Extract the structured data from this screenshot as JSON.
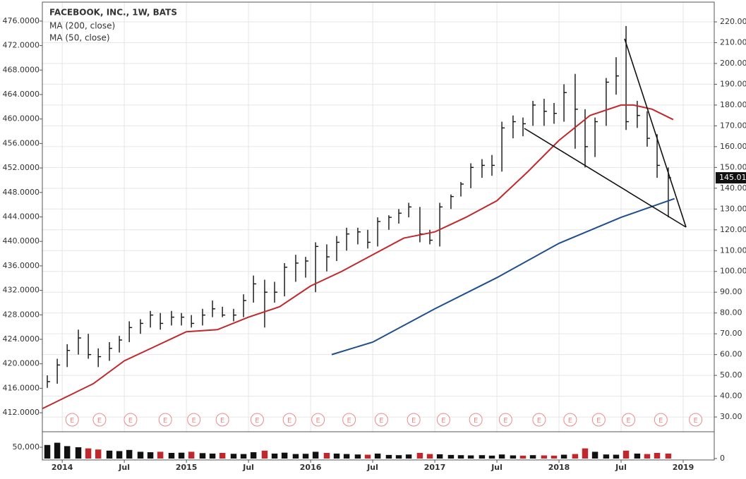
{
  "chart_data": {
    "type": "ohlc",
    "title": "FACEBOOK, INC., 1W, BATS",
    "legend": [
      "MA (200, close)",
      "MA (50, close)"
    ],
    "xlim": [
      2013.84,
      2019.25
    ],
    "xticks": [
      {
        "value": 2014,
        "label": "2014"
      },
      {
        "value": 2014.5,
        "label": "Jul"
      },
      {
        "value": 2015,
        "label": "2015"
      },
      {
        "value": 2015.5,
        "label": "Jul"
      },
      {
        "value": 2016,
        "label": "2016"
      },
      {
        "value": 2016.5,
        "label": "Jul"
      },
      {
        "value": 2017,
        "label": "2017"
      },
      {
        "value": 2017.5,
        "label": "Jul"
      },
      {
        "value": 2018,
        "label": "2018"
      },
      {
        "value": 2018.5,
        "label": "Jul"
      },
      {
        "value": 2019,
        "label": "2019"
      }
    ],
    "ylim": [
      22.9,
      229.5
    ],
    "yticks": [
      {
        "value": 30,
        "label": "30.00"
      },
      {
        "value": 40,
        "label": "40.00"
      },
      {
        "value": 50,
        "label": "50.00"
      },
      {
        "value": 60,
        "label": "60.00"
      },
      {
        "value": 70,
        "label": "70.00"
      },
      {
        "value": 80,
        "label": "80.00"
      },
      {
        "value": 90,
        "label": "90.00"
      },
      {
        "value": 100,
        "label": "100.00"
      },
      {
        "value": 110,
        "label": "110.00"
      },
      {
        "value": 120,
        "label": "120.00"
      },
      {
        "value": 130,
        "label": "130.00"
      },
      {
        "value": 140,
        "label": "140.00"
      },
      {
        "value": 150,
        "label": "150.00"
      },
      {
        "value": 160,
        "label": "160.00"
      },
      {
        "value": 170,
        "label": "170.00"
      },
      {
        "value": 180,
        "label": "180.00"
      },
      {
        "value": 190,
        "label": "190.00"
      },
      {
        "value": 200,
        "label": "200.00"
      },
      {
        "value": 210,
        "label": "210.00"
      },
      {
        "value": 220,
        "label": "220.00"
      }
    ],
    "y2lim": [
      408.9,
      479.1
    ],
    "y2ticks": [
      {
        "value": 412,
        "label": "412.0000"
      },
      {
        "value": 416,
        "label": "416.0000"
      },
      {
        "value": 420,
        "label": "420.0000"
      },
      {
        "value": 424,
        "label": "424.0000"
      },
      {
        "value": 428,
        "label": "428.0000"
      },
      {
        "value": 432,
        "label": "432.0000"
      },
      {
        "value": 436,
        "label": "436.0000"
      },
      {
        "value": 440,
        "label": "440.0000"
      },
      {
        "value": 444,
        "label": "444.0000"
      },
      {
        "value": 448,
        "label": "448.0000"
      },
      {
        "value": 452,
        "label": "452.0000"
      },
      {
        "value": 456,
        "label": "456.0000"
      },
      {
        "value": 460,
        "label": "460.0000"
      },
      {
        "value": 464,
        "label": "464.0000"
      },
      {
        "value": 468,
        "label": "468.0000"
      },
      {
        "value": 472,
        "label": "472.0000"
      },
      {
        "value": 476,
        "label": "476.0000"
      }
    ],
    "grid": true,
    "price": {
      "color": "#111111",
      "x": [
        2013.88,
        2013.96,
        2014.04,
        2014.13,
        2014.21,
        2014.29,
        2014.38,
        2014.46,
        2014.54,
        2014.63,
        2014.71,
        2014.79,
        2014.88,
        2014.96,
        2015.04,
        2015.13,
        2015.21,
        2015.29,
        2015.38,
        2015.46,
        2015.54,
        2015.63,
        2015.71,
        2015.79,
        2015.88,
        2015.96,
        2016.04,
        2016.13,
        2016.21,
        2016.29,
        2016.38,
        2016.46,
        2016.54,
        2016.63,
        2016.71,
        2016.79,
        2016.88,
        2016.96,
        2017.04,
        2017.13,
        2017.21,
        2017.29,
        2017.38,
        2017.46,
        2017.54,
        2017.63,
        2017.71,
        2017.79,
        2017.88,
        2017.96,
        2018.04,
        2018.13,
        2018.21,
        2018.29,
        2018.38,
        2018.46,
        2018.54,
        2018.63,
        2018.71,
        2018.79,
        2018.88
      ],
      "high": [
        50,
        58,
        65,
        72,
        70,
        63,
        66,
        69,
        76,
        77,
        81,
        80,
        81,
        80,
        79,
        82,
        86,
        83,
        82,
        89,
        98,
        96,
        95,
        104,
        108,
        107,
        114,
        113,
        117,
        121,
        121,
        120,
        126,
        127,
        130,
        133,
        131,
        120,
        133,
        137,
        143,
        152,
        154,
        156,
        172,
        175,
        174,
        182,
        183,
        181,
        190,
        195,
        178,
        174,
        193,
        203,
        218,
        182,
        177,
        166,
        150
      ],
      "low": [
        44,
        46,
        54,
        60,
        58,
        54,
        57,
        61,
        66,
        70,
        73,
        72,
        74,
        74,
        73,
        74,
        78,
        78,
        76,
        78,
        85,
        73,
        85,
        88,
        95,
        97,
        90,
        100,
        105,
        110,
        113,
        111,
        112,
        120,
        123,
        126,
        114,
        113,
        112,
        130,
        136,
        140,
        145,
        146,
        148,
        164,
        165,
        170,
        170,
        171,
        172,
        159,
        150,
        155,
        170,
        185,
        168,
        169,
        160,
        145,
        126
      ],
      "close": [
        47,
        55,
        62,
        68,
        60,
        59,
        63,
        67,
        73,
        75,
        79,
        75,
        78,
        78,
        75,
        79,
        82,
        79,
        79,
        86,
        94,
        90,
        90,
        102,
        104,
        105,
        112,
        107,
        114,
        118,
        119,
        114,
        124,
        126,
        128,
        131,
        118,
        115,
        131,
        136,
        142,
        150,
        151,
        151,
        169,
        172,
        171,
        180,
        177,
        176,
        186,
        178,
        160,
        172,
        191,
        194,
        172,
        175,
        164,
        151,
        145.01
      ]
    },
    "series": [
      {
        "name": "MA (200, close)",
        "color": "#1f4e8c",
        "x": [
          2016.17,
          2016.5,
          2017,
          2017.5,
          2018,
          2018.5,
          2018.93
        ],
        "values": [
          60,
          66,
          82,
          97,
          113.5,
          126,
          135
        ]
      },
      {
        "name": "MA (50, close)",
        "color": "#c0282d",
        "x": [
          2013.84,
          2014.25,
          2014.5,
          2014.75,
          2015,
          2015.25,
          2015.5,
          2015.75,
          2016,
          2016.25,
          2016.5,
          2016.75,
          2017,
          2017.25,
          2017.5,
          2017.75,
          2018,
          2018.25,
          2018.5,
          2018.6,
          2018.75,
          2018.92
        ],
        "values": [
          34,
          46,
          57,
          64,
          71,
          72,
          78,
          83,
          93,
          100,
          108,
          116,
          119,
          126,
          134,
          148,
          163,
          175,
          180,
          180,
          178,
          173
        ]
      }
    ],
    "earnings": {
      "label": "E",
      "color": "#e88a8a",
      "x": [
        2014.08,
        2014.3,
        2014.55,
        2014.83,
        2015.06,
        2015.29,
        2015.57,
        2015.83,
        2016.06,
        2016.31,
        2016.57,
        2016.83,
        2017.07,
        2017.33,
        2017.57,
        2017.84,
        2018.09,
        2018.32,
        2018.56,
        2018.82,
        2019.1
      ]
    },
    "volume": {
      "up_color": "#111111",
      "down_color": "#c0282d",
      "ylim": [
        0,
        100000
      ],
      "yticks": [
        {
          "value": 50000,
          "label": "50,000"
        }
      ],
      "y2ticks": [
        0
      ],
      "values": [
        60000,
        70000,
        55000,
        50000,
        45000,
        40000,
        35000,
        33000,
        38000,
        30000,
        28000,
        30000,
        25000,
        26000,
        30000,
        24000,
        22000,
        25000,
        21000,
        20000,
        28000,
        35000,
        22000,
        26000,
        20000,
        21000,
        30000,
        25000,
        22000,
        20000,
        18000,
        17000,
        22000,
        16000,
        15000,
        18000,
        25000,
        20000,
        19000,
        16000,
        15000,
        14000,
        15000,
        13000,
        18000,
        14000,
        13000,
        15000,
        14000,
        13000,
        17000,
        20000,
        45000,
        30000,
        18000,
        17000,
        35000,
        22000,
        20000,
        25000,
        22000
      ]
    }
  }
}
